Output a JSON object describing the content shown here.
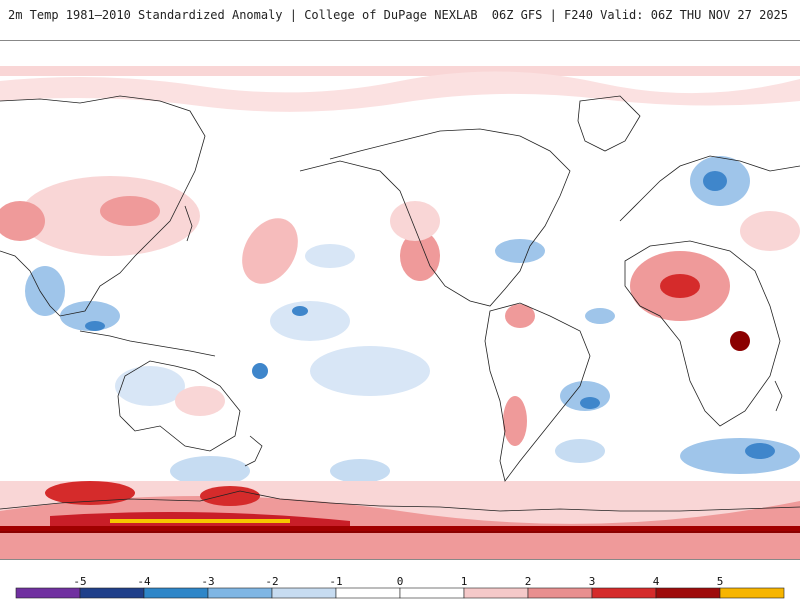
{
  "header": {
    "left_title": "2m Temp 1981–2010 Standardized Anomaly | College of DuPage NEXLAB",
    "right_title": "06Z GFS | F240 Valid: 06Z THU NOV 27 2025"
  },
  "colorbar": {
    "ticks": [
      "-5",
      "-4",
      "-3",
      "-2",
      "-1",
      "0",
      "1",
      "2",
      "3",
      "4",
      "5"
    ],
    "colors": [
      "#7030a0",
      "#1f3f8a",
      "#2e86c8",
      "#7fb6e4",
      "#c7dcf1",
      "#ffffff",
      "#ffffff",
      "#f5c9c9",
      "#e88f8f",
      "#d52b2b",
      "#9e0b0b",
      "#f7b500"
    ]
  },
  "map": {
    "type": "global standardized temperature anomaly",
    "colors": {
      "light_red": "#f9d6d6",
      "mid_red": "#ef9a9a",
      "dark_red": "#c91e28",
      "darkest_red": "#8b0000",
      "yellow": "#f7c600",
      "light_blue": "#d8e6f6",
      "mid_blue": "#9fc5ea",
      "dark_blue": "#3f86cb",
      "coast": "#222222"
    }
  }
}
